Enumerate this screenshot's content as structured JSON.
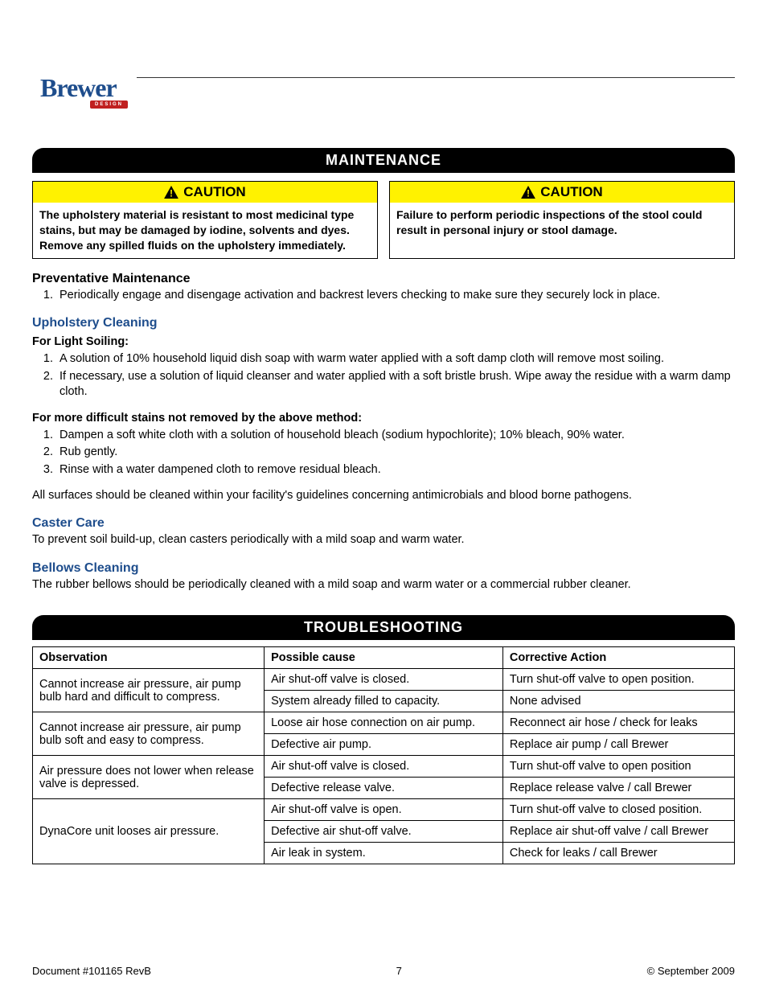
{
  "logo": {
    "text": "Brewer",
    "sub": "DESIGN"
  },
  "banners": {
    "maintenance": "MAINTENANCE",
    "troubleshooting": "TROUBLESHOOTING"
  },
  "caution_label": "CAUTION",
  "cautions": {
    "left": "The upholstery material is resistant to most medicinal type stains, but may be damaged by iodine, solvents and dyes. Remove any spilled fluids on the upholstery immediately.",
    "right": "Failure to perform periodic inspections of the stool could result in personal injury or stool damage."
  },
  "prev_maint": {
    "title": "Preventative Maintenance",
    "items": [
      "Periodically engage and disengage activation and backrest levers checking to make sure they securely lock in place."
    ]
  },
  "upholstery": {
    "title": "Upholstery Cleaning",
    "light_label": "For Light Soiling:",
    "light_items": [
      "A solution of 10% household liquid dish soap with warm water applied with a soft damp cloth will remove most soiling.",
      "If necessary, use a solution of liquid cleanser and water applied with a soft bristle brush. Wipe away the residue with a warm damp cloth."
    ],
    "difficult_label": "For more difficult stains not removed by the above method:",
    "difficult_items": [
      "Dampen a soft white cloth with a solution of household bleach (sodium hypochlorite); 10% bleach, 90% water.",
      "Rub gently.",
      "Rinse with a water dampened cloth to remove residual bleach."
    ],
    "note": "All surfaces should be cleaned within your facility's guidelines concerning antimicrobials and blood borne pathogens."
  },
  "caster": {
    "title": "Caster Care",
    "text": "To prevent soil build-up, clean casters periodically with a mild soap and warm water."
  },
  "bellows": {
    "title": "Bellows Cleaning",
    "text": "The rubber bellows should be periodically cleaned with a mild soap and warm water or a commercial rubber cleaner."
  },
  "trouble": {
    "headers": {
      "obs": "Observation",
      "cause": "Possible cause",
      "action": "Corrective Action"
    },
    "rows": [
      {
        "obs": "Cannot increase air pressure, air pump bulb hard and difficult to compress.",
        "obs_span": 2,
        "cause": "Air shut-off valve is closed.",
        "action": "Turn shut-off valve to open position."
      },
      {
        "cause": "System already filled to capacity.",
        "action": "None advised"
      },
      {
        "obs": "Cannot increase air pressure, air pump bulb soft and easy to compress.",
        "obs_span": 2,
        "cause": "Loose air hose connection on air pump.",
        "action": "Reconnect air hose / check for leaks"
      },
      {
        "cause": "Defective air pump.",
        "action": "Replace air pump / call Brewer"
      },
      {
        "obs": "Air pressure does not lower when release valve is depressed.",
        "obs_span": 2,
        "cause": "Air shut-off valve is closed.",
        "action": "Turn shut-off valve to open position"
      },
      {
        "cause": "Defective release valve.",
        "action": "Replace release valve / call Brewer"
      },
      {
        "obs": "DynaCore unit looses air pressure.",
        "obs_span": 3,
        "cause": "Air shut-off valve is open.",
        "action": "Turn shut-off valve to closed position."
      },
      {
        "cause": "Defective air shut-off valve.",
        "action": "Replace air shut-off valve / call Brewer"
      },
      {
        "cause": "Air leak in system.",
        "action": "Check for leaks / call Brewer"
      }
    ]
  },
  "footer": {
    "doc": "Document #101165 RevB",
    "page": "7",
    "copyright": "© September 2009"
  },
  "colors": {
    "banner_bg": "#000000",
    "banner_fg": "#ffffff",
    "caution_bg": "#fff200",
    "heading_blue": "#1e4d8c",
    "logo_red": "#c02020"
  }
}
